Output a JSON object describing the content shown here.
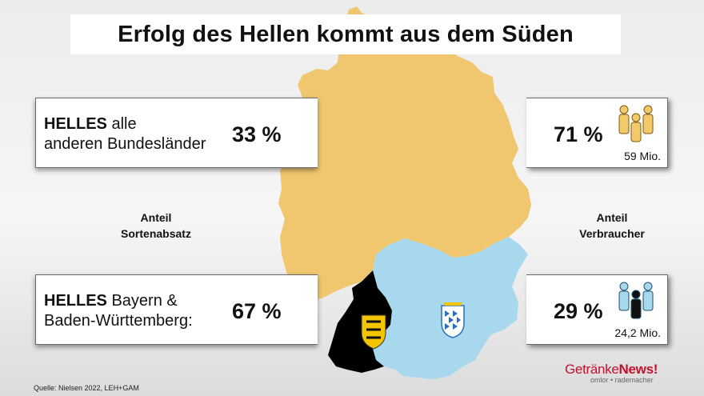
{
  "title": "Erfolg des Hellen kommt aus dem Süden",
  "panels": {
    "top_left": {
      "bold": "HELLES",
      "rest_line1": "alle",
      "line2": "anderen Bundesländer",
      "value": "33 %"
    },
    "top_right": {
      "value": "71 %",
      "count": "59 Mio."
    },
    "bottom_left": {
      "bold": "HELLES",
      "rest_line1": "Bayern &",
      "line2": "Baden-Württemberg:",
      "value": "67 %"
    },
    "bottom_right": {
      "value": "29 %",
      "count": "24,2 Mio."
    }
  },
  "labels": {
    "left_line1": "Anteil",
    "left_line2": "Sortenabsatz",
    "right_line1": "Anteil",
    "right_line2": "Verbraucher"
  },
  "source": "Quelle: Nielsen 2022, LEH+GAM",
  "brand": {
    "name_a": "Getränke",
    "name_b": "News",
    "mark": "!",
    "sub": "omlor • rademacher"
  },
  "colors": {
    "germany": "#f0c76e",
    "bayern": "#a8d8ee",
    "bw": "#000000",
    "people_gold": "#f2c96b",
    "people_blue": "#a8d8ee"
  },
  "icons": [
    "people-group-gold-icon",
    "people-group-blue-icon",
    "bw-coat-of-arms-icon",
    "bayern-coat-of-arms-icon"
  ]
}
